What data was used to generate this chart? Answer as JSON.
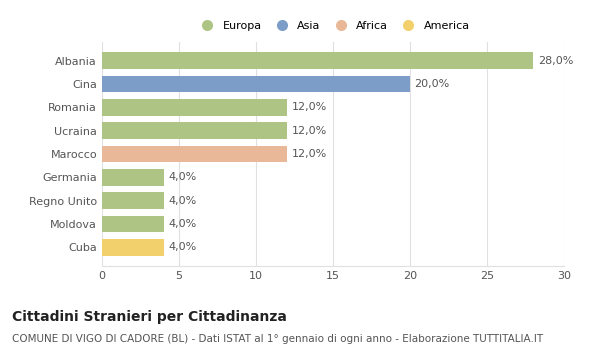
{
  "categories": [
    "Albania",
    "Cina",
    "Romania",
    "Ucraina",
    "Marocco",
    "Germania",
    "Regno Unito",
    "Moldova",
    "Cuba"
  ],
  "values": [
    28.0,
    20.0,
    12.0,
    12.0,
    12.0,
    4.0,
    4.0,
    4.0,
    4.0
  ],
  "colors": [
    "#aec484",
    "#7b9dc7",
    "#aec484",
    "#aec484",
    "#e8b898",
    "#aec484",
    "#aec484",
    "#aec484",
    "#f2d06b"
  ],
  "labels": [
    "28,0%",
    "20,0%",
    "12,0%",
    "12,0%",
    "12,0%",
    "4,0%",
    "4,0%",
    "4,0%",
    "4,0%"
  ],
  "legend_labels": [
    "Europa",
    "Asia",
    "Africa",
    "America"
  ],
  "legend_colors": [
    "#aec484",
    "#7b9dc7",
    "#e8b898",
    "#f2d06b"
  ],
  "title": "Cittadini Stranieri per Cittadinanza",
  "subtitle": "COMUNE DI VIGO DI CADORE (BL) - Dati ISTAT al 1° gennaio di ogni anno - Elaborazione TUTTITALIA.IT",
  "xlim": [
    0,
    30
  ],
  "xticks": [
    0,
    5,
    10,
    15,
    20,
    25,
    30
  ],
  "background_color": "#ffffff",
  "grid_color": "#e0e0e0",
  "title_fontsize": 10,
  "subtitle_fontsize": 7.5,
  "label_fontsize": 8,
  "tick_fontsize": 8,
  "bar_height": 0.72
}
